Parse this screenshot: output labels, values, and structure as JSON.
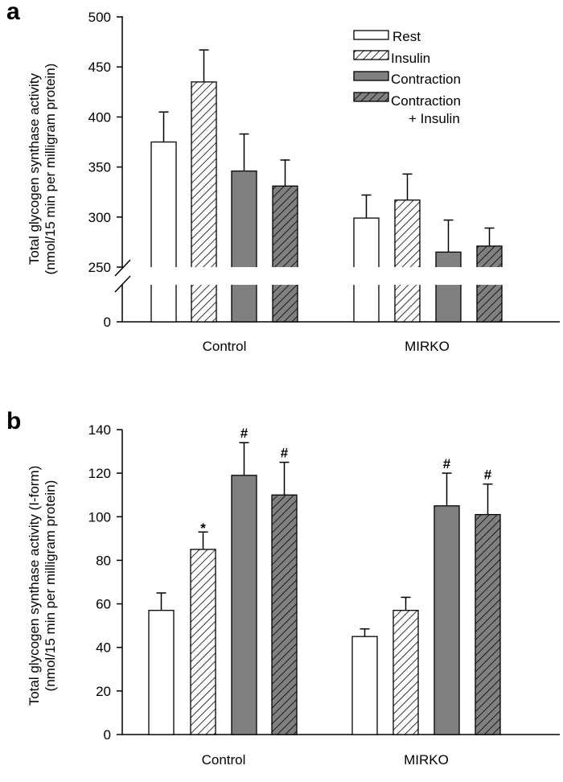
{
  "colors": {
    "gray": "#808080",
    "white": "#ffffff",
    "line": "#000000"
  },
  "legend": [
    {
      "label": "Rest",
      "fill": "white",
      "hatch": false
    },
    {
      "label": "Insulin",
      "fill": "white",
      "hatch": true
    },
    {
      "label": "Contraction",
      "fill": "gray",
      "hatch": false
    },
    {
      "label": "Contraction",
      "label2": "+ Insulin",
      "fill": "gray",
      "hatch": true
    }
  ],
  "chart_data": [
    {
      "type": "bar",
      "panel_label": "a",
      "ylabel_line1": "Total glycogen synthase activity",
      "ylabel_line2": "(nmol/15 min per milligram protein)",
      "categories": [
        "Control",
        "MIRKO"
      ],
      "axis_break": [
        0,
        250
      ],
      "yticks": [
        "0",
        "250",
        "300",
        "350",
        "400",
        "450",
        "500"
      ],
      "ylim": [
        250,
        500
      ],
      "series": [
        {
          "name": "Rest",
          "values": [
            375,
            299
          ],
          "errors": [
            30,
            23
          ],
          "annotations": [
            "",
            ""
          ]
        },
        {
          "name": "Insulin",
          "values": [
            435,
            317
          ],
          "errors": [
            32,
            26
          ],
          "annotations": [
            "",
            ""
          ]
        },
        {
          "name": "Contraction",
          "values": [
            346,
            265
          ],
          "errors": [
            37,
            32
          ],
          "annotations": [
            "",
            ""
          ]
        },
        {
          "name": "Contraction + Insulin",
          "values": [
            331,
            271
          ],
          "errors": [
            26,
            18
          ],
          "annotations": [
            "",
            ""
          ]
        }
      ],
      "legend_position": "top-right"
    },
    {
      "type": "bar",
      "panel_label": "b",
      "ylabel_line1": "Total glycogen synthase activity (I-form)",
      "ylabel_line2": "(nmol/15 min per milligram protein)",
      "categories": [
        "Control",
        "MIRKO"
      ],
      "yticks": [
        "0",
        "20",
        "40",
        "60",
        "80",
        "100",
        "120",
        "140"
      ],
      "ylim": [
        0,
        140
      ],
      "series": [
        {
          "name": "Rest",
          "values": [
            57,
            45
          ],
          "errors": [
            8,
            3.5
          ],
          "annotations": [
            "",
            ""
          ]
        },
        {
          "name": "Insulin",
          "values": [
            85,
            57
          ],
          "errors": [
            8,
            6
          ],
          "annotations": [
            "*",
            ""
          ]
        },
        {
          "name": "Contraction",
          "values": [
            119,
            105
          ],
          "errors": [
            15,
            15
          ],
          "annotations": [
            "#",
            "#"
          ]
        },
        {
          "name": "Contraction + Insulin",
          "values": [
            110,
            101
          ],
          "errors": [
            15,
            14
          ],
          "annotations": [
            "#",
            "#"
          ]
        }
      ]
    }
  ]
}
